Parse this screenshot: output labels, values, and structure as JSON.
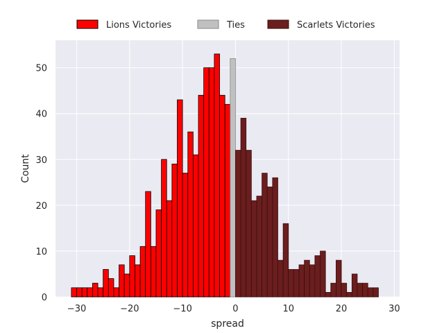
{
  "chart_data": {
    "type": "bar",
    "subtype": "histogram",
    "xlabel": "spread",
    "ylabel": "Count",
    "xlim": [
      -34,
      31
    ],
    "ylim": [
      0,
      56
    ],
    "xticks": [
      -30,
      -20,
      -10,
      0,
      10,
      20,
      30
    ],
    "yticks": [
      0,
      10,
      20,
      30,
      40,
      50
    ],
    "grid": true,
    "legend_position": "top-center",
    "bin_width": 1,
    "series": [
      {
        "name": "Lions Victories",
        "color": "#ff0000",
        "edge_color": "#000000",
        "bins": [
          -31,
          -30,
          -29,
          -28,
          -27,
          -26,
          -25,
          -24,
          -23,
          -22,
          -21,
          -20,
          -19,
          -18,
          -17,
          -16,
          -15,
          -14,
          -13,
          -12,
          -11,
          -10,
          -9,
          -8,
          -7,
          -6,
          -5,
          -4,
          -3,
          -2,
          -1
        ],
        "values": [
          2,
          2,
          2,
          2,
          3,
          2,
          6,
          4,
          2,
          7,
          5,
          9,
          7,
          11,
          23,
          11,
          19,
          30,
          21,
          29,
          43,
          27,
          36,
          31,
          44,
          50,
          50,
          53,
          44,
          42,
          0
        ]
      },
      {
        "name": "Ties",
        "color": "#c0c0c0",
        "edge_color": "#888888",
        "bins": [
          -1
        ],
        "values": [
          52
        ]
      },
      {
        "name": "Scarlets Victories",
        "color": "#6b1e1e",
        "edge_color": "#3a0d0d",
        "bins": [
          0,
          1,
          2,
          3,
          4,
          5,
          6,
          7,
          8,
          9,
          10,
          11,
          12,
          13,
          14,
          15,
          16,
          17,
          18,
          19,
          20,
          21,
          22,
          23,
          24,
          25,
          26,
          27
        ],
        "values": [
          32,
          39,
          32,
          21,
          22,
          27,
          24,
          26,
          8,
          16,
          6,
          6,
          7,
          8,
          7,
          9,
          10,
          1,
          3,
          8,
          3,
          1,
          5,
          3,
          3,
          2,
          2,
          0
        ]
      }
    ]
  }
}
